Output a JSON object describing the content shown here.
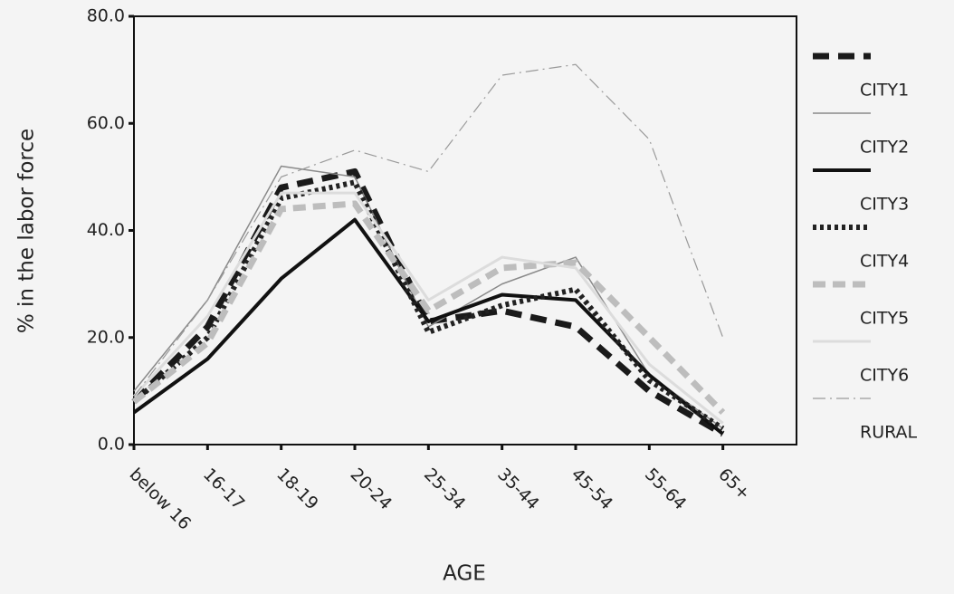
{
  "chart_data": {
    "type": "line",
    "x_label": "AGE",
    "y_label": "% in the labor force",
    "categories": [
      "below 16",
      "16-17",
      "18-19",
      "20-24",
      "25-34",
      "35-44",
      "45-54",
      "55-64",
      "65+"
    ],
    "series": [
      {
        "name": "CITY1",
        "color": "#1a1a1a",
        "width": 7,
        "dash": "18 10",
        "values": [
          8,
          22,
          48,
          51,
          23,
          25,
          22,
          10,
          2
        ]
      },
      {
        "name": "CITY2",
        "color": "#8a8a8a",
        "width": 1.5,
        "dash": "none",
        "values": [
          10,
          27,
          52,
          50,
          22,
          30,
          35,
          13,
          3
        ]
      },
      {
        "name": "CITY3",
        "color": "#111111",
        "width": 4,
        "dash": "none",
        "values": [
          6,
          16,
          31,
          42,
          23,
          28,
          27,
          13,
          2
        ]
      },
      {
        "name": "CITY4",
        "color": "#222222",
        "width": 6,
        "dash": "4 4",
        "values": [
          8,
          20,
          46,
          49,
          21,
          26,
          29,
          12,
          3
        ]
      },
      {
        "name": "CITY5",
        "color": "#bdbdbd",
        "width": 7,
        "dash": "14 8",
        "values": [
          8,
          19,
          44,
          45,
          25,
          33,
          34,
          20,
          6
        ]
      },
      {
        "name": "CITY6",
        "color": "#dcdcdc",
        "width": 3,
        "dash": "none",
        "values": [
          9,
          24,
          47,
          47,
          27,
          35,
          33,
          15,
          4
        ]
      },
      {
        "name": "RURAL",
        "color": "#9a9a9a",
        "width": 1.2,
        "dash": "14 5 2 5",
        "values": [
          9,
          27,
          50,
          55,
          51,
          69,
          71,
          57,
          20
        ]
      }
    ],
    "ylim": [
      0,
      80
    ],
    "yticks": [
      {
        "value": 0,
        "label": "0.0"
      },
      {
        "value": 20,
        "label": "20.0"
      },
      {
        "value": 40,
        "label": "40.0"
      },
      {
        "value": 60,
        "label": "60.0"
      },
      {
        "value": 80,
        "label": "80.0"
      }
    ]
  }
}
